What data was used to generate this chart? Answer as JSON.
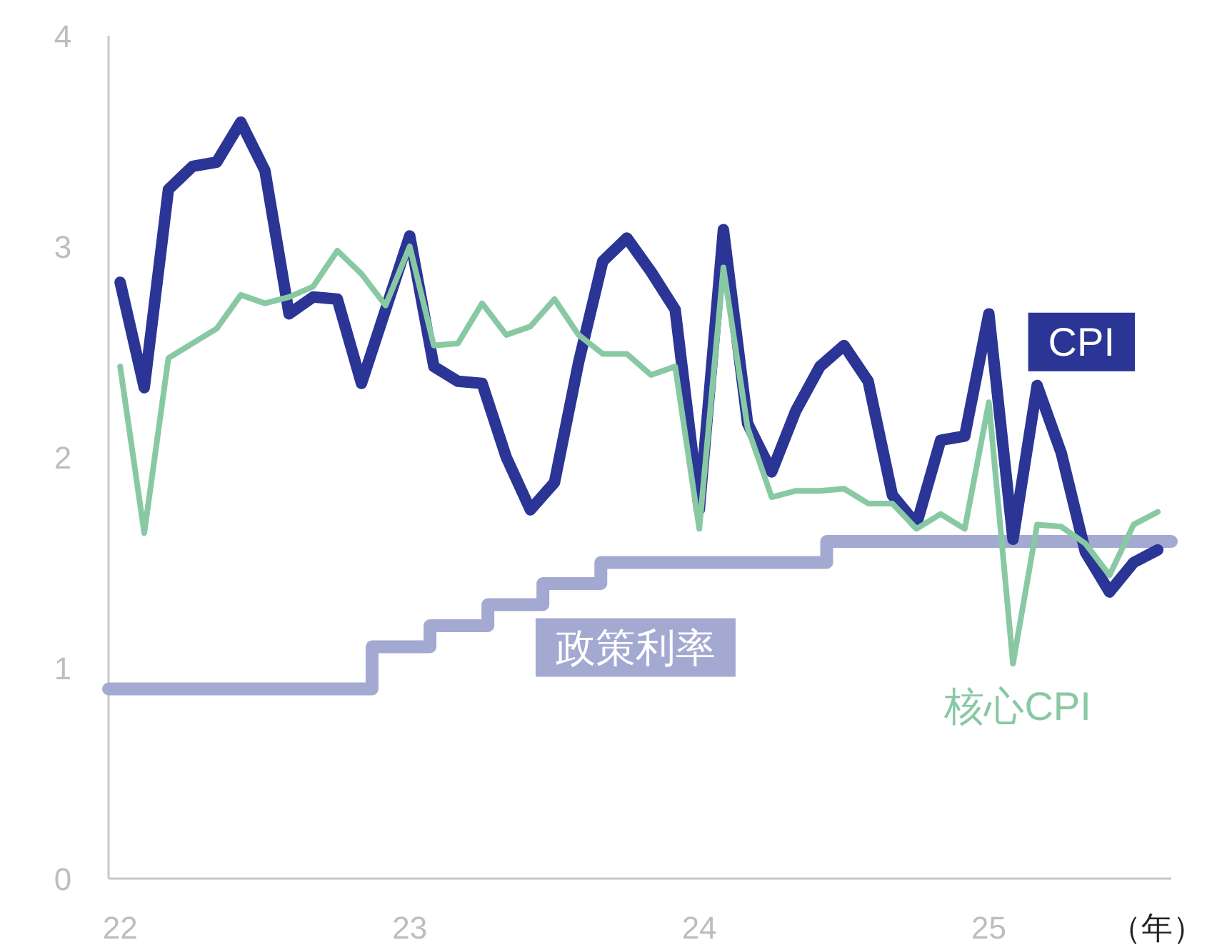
{
  "chart_data": {
    "type": "line",
    "xlabel": "（年）",
    "xlim": [
      21.96,
      25.63
    ],
    "ylim": [
      0,
      4
    ],
    "xticks": [
      22,
      23,
      24,
      25
    ],
    "yticks": [
      0,
      1,
      2,
      3,
      4
    ],
    "x": [
      22,
      22.0833,
      22.1667,
      22.25,
      22.3333,
      22.4167,
      22.5,
      22.5833,
      22.6667,
      22.75,
      22.8333,
      22.9167,
      23,
      23.0833,
      23.1667,
      23.25,
      23.3333,
      23.4167,
      23.5,
      23.5833,
      23.6667,
      23.75,
      23.8333,
      23.9167,
      24,
      24.0833,
      24.1667,
      24.25,
      24.3333,
      24.4167,
      24.5,
      24.5833,
      24.6667,
      24.75,
      24.8333,
      24.9167,
      25,
      25.0833,
      25.1667,
      25.25,
      25.3333,
      25.4167,
      25.5,
      25.5833
    ],
    "series": [
      {
        "name": "政策利率",
        "type": "step",
        "color": "#a4a9d2",
        "x": [
          21.96,
          22.87,
          23.07,
          23.27,
          23.46,
          23.66,
          24.44,
          25.63
        ],
        "values": [
          0.9,
          1.1,
          1.2,
          1.3,
          1.4,
          1.5,
          1.6,
          1.6
        ]
      },
      {
        "name": "CPI",
        "color": "#2b3595",
        "values": [
          2.83,
          2.33,
          3.27,
          3.38,
          3.4,
          3.59,
          3.36,
          2.68,
          2.76,
          2.75,
          2.35,
          2.7,
          3.05,
          2.43,
          2.36,
          2.35,
          2.0,
          1.75,
          1.88,
          2.45,
          2.93,
          3.04,
          2.88,
          2.7,
          1.75,
          3.08,
          2.16,
          1.93,
          2.22,
          2.43,
          2.53,
          2.36,
          1.82,
          1.68,
          2.08,
          2.1,
          2.68,
          1.61,
          2.34,
          2.02,
          1.55,
          1.36,
          1.5,
          1.56
        ]
      },
      {
        "name": "核心CPI",
        "color": "#88c9a4",
        "values": [
          2.43,
          1.64,
          2.47,
          2.54,
          2.61,
          2.77,
          2.73,
          2.76,
          2.81,
          2.98,
          2.87,
          2.72,
          3.0,
          2.53,
          2.54,
          2.73,
          2.58,
          2.62,
          2.75,
          2.58,
          2.49,
          2.49,
          2.39,
          2.43,
          1.66,
          2.9,
          2.14,
          1.81,
          1.84,
          1.84,
          1.85,
          1.78,
          1.78,
          1.66,
          1.73,
          1.66,
          2.26,
          1.02,
          1.68,
          1.67,
          1.59,
          1.44,
          1.68,
          1.74
        ]
      }
    ]
  }
}
